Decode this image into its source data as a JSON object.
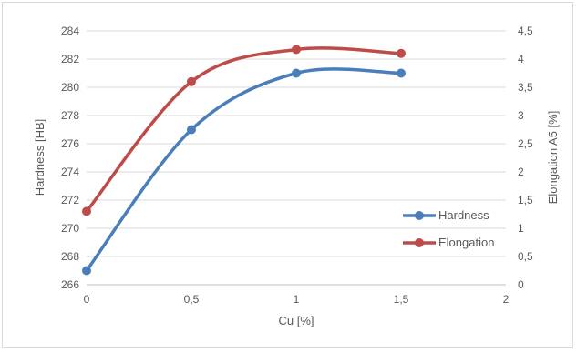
{
  "chart_data": {
    "type": "line",
    "smooth": true,
    "x": [
      0,
      0.5,
      1,
      1.5
    ],
    "xlabel": "Cu [%]",
    "xlim": [
      0,
      2
    ],
    "x_ticks": [
      "0",
      "0,5",
      "1",
      "1,5",
      "2"
    ],
    "y_left": {
      "label": "Hardness [HB]",
      "lim": [
        266,
        284
      ],
      "ticks": [
        "266",
        "268",
        "270",
        "272",
        "274",
        "276",
        "278",
        "280",
        "282",
        "284"
      ]
    },
    "y_right": {
      "label": "Elongation A5 [%]",
      "lim": [
        0,
        4.5
      ],
      "ticks": [
        "0",
        "0,5",
        "1",
        "1,5",
        "2",
        "2,5",
        "3",
        "3,5",
        "4",
        "4,5"
      ]
    },
    "series": [
      {
        "name": "Hardness",
        "axis": "left",
        "color": "#4a7ebb",
        "values": [
          267,
          277,
          281,
          281
        ]
      },
      {
        "name": "Elongation",
        "axis": "right",
        "color": "#be4b48",
        "values": [
          1.3,
          3.6,
          4.17,
          4.1
        ]
      }
    ],
    "grid": "horizontal",
    "legend_position": "right"
  }
}
